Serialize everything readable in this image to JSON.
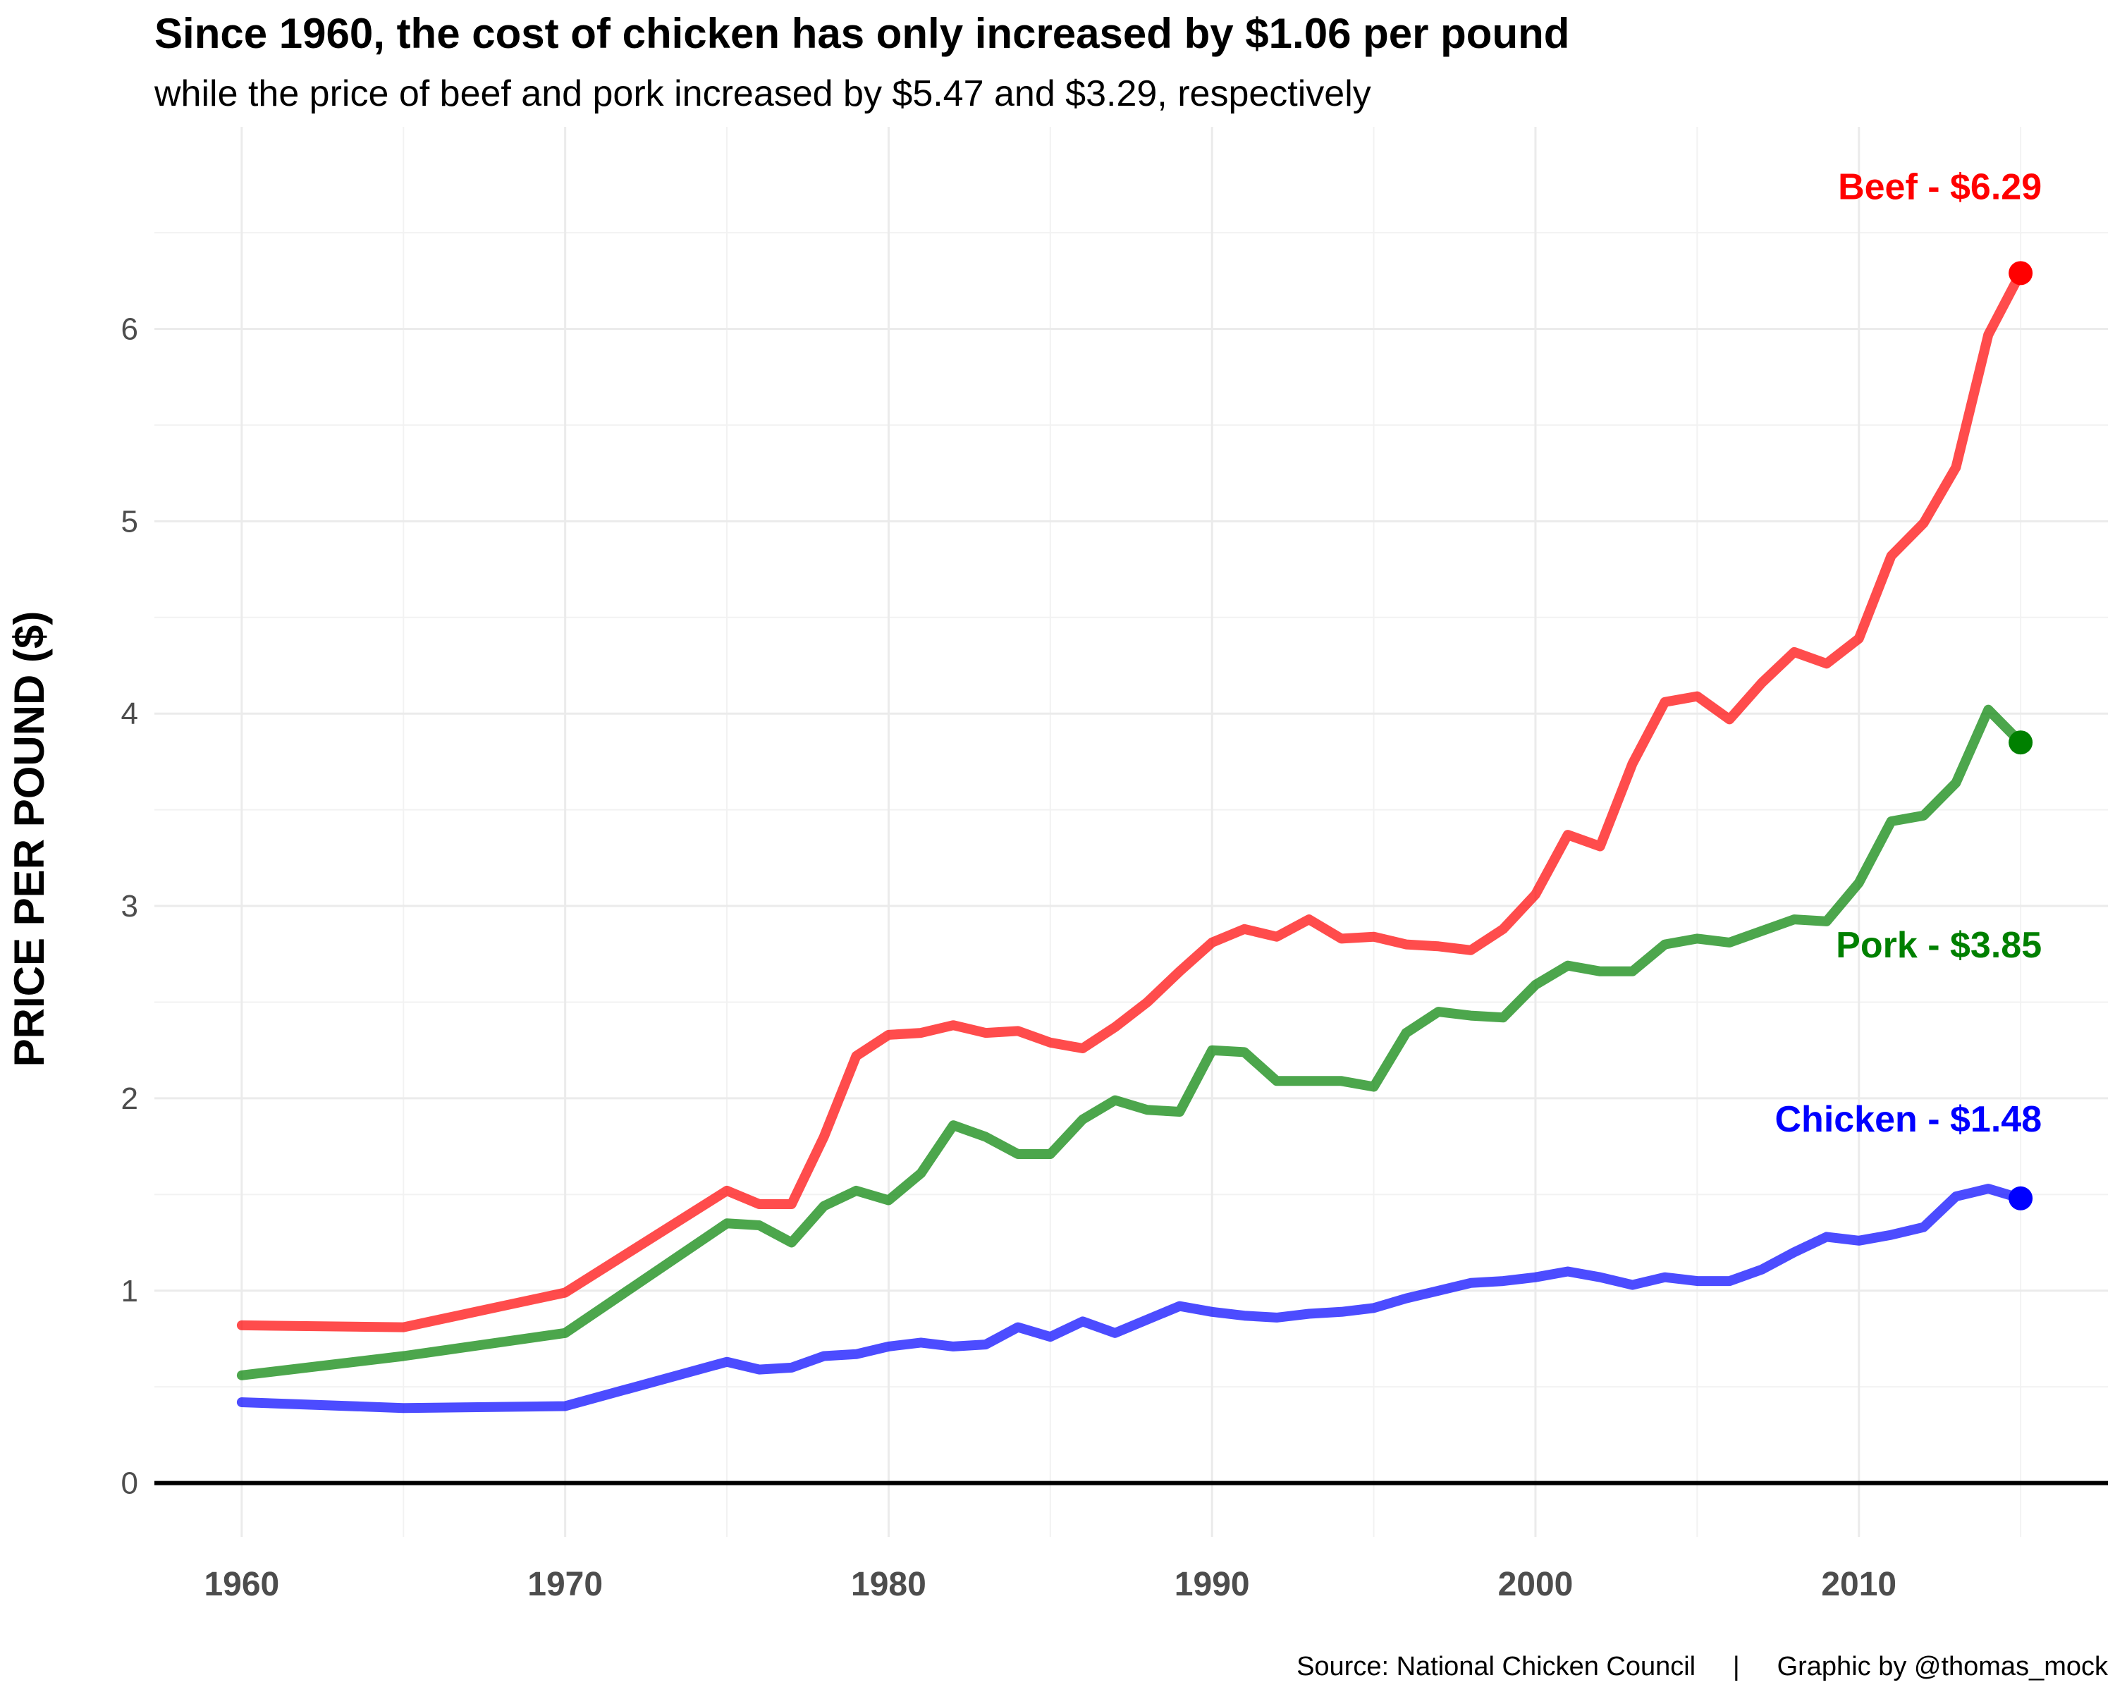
{
  "chart_data": {
    "type": "line",
    "title": "Since 1960, the cost of chicken has only increased by $1.06 per pound",
    "subtitle": "while the price of beef and pork increased by $5.47 and $3.29, respectively",
    "xlabel": "",
    "ylabel": "PRICE PER POUND ($)",
    "xlim": [
      1957.3,
      2017.7
    ],
    "ylim": [
      -0.28,
      7.05
    ],
    "x_ticks": [
      1960,
      1970,
      1980,
      1990,
      2000,
      2010
    ],
    "y_ticks": [
      0,
      1,
      2,
      3,
      4,
      5,
      6
    ],
    "grid": true,
    "caption": "Source: National Chicken Council     |     Graphic by @thomas_mock",
    "series": [
      {
        "name": "Beef",
        "color": "#ff0000",
        "end_label": "Beef - $6.29",
        "x": [
          1960,
          1965,
          1970,
          1975,
          1976,
          1977,
          1978,
          1979,
          1980,
          1981,
          1982,
          1983,
          1984,
          1985,
          1986,
          1987,
          1988,
          1989,
          1990,
          1991,
          1992,
          1993,
          1994,
          1995,
          1996,
          1997,
          1998,
          1999,
          2000,
          2001,
          2002,
          2003,
          2004,
          2005,
          2006,
          2007,
          2008,
          2009,
          2010,
          2011,
          2012,
          2013,
          2014,
          2015
        ],
        "y": [
          0.82,
          0.81,
          0.99,
          1.52,
          1.45,
          1.45,
          1.8,
          2.22,
          2.33,
          2.34,
          2.38,
          2.34,
          2.35,
          2.29,
          2.26,
          2.37,
          2.5,
          2.66,
          2.81,
          2.88,
          2.84,
          2.93,
          2.83,
          2.84,
          2.8,
          2.79,
          2.77,
          2.88,
          3.06,
          3.37,
          3.31,
          3.74,
          4.06,
          4.09,
          3.97,
          4.16,
          4.32,
          4.26,
          4.39,
          4.82,
          4.99,
          5.28,
          5.97,
          6.29
        ]
      },
      {
        "name": "Pork",
        "color": "#008000",
        "end_label": "Pork - $3.85",
        "x": [
          1960,
          1965,
          1970,
          1975,
          1976,
          1977,
          1978,
          1979,
          1980,
          1981,
          1982,
          1983,
          1984,
          1985,
          1986,
          1987,
          1988,
          1989,
          1990,
          1991,
          1992,
          1993,
          1994,
          1995,
          1996,
          1997,
          1998,
          1999,
          2000,
          2001,
          2002,
          2003,
          2004,
          2005,
          2006,
          2007,
          2008,
          2009,
          2010,
          2011,
          2012,
          2013,
          2014,
          2015
        ],
        "y": [
          0.56,
          0.66,
          0.78,
          1.35,
          1.34,
          1.25,
          1.44,
          1.52,
          1.47,
          1.61,
          1.86,
          1.8,
          1.71,
          1.71,
          1.89,
          1.99,
          1.94,
          1.93,
          2.25,
          2.24,
          2.09,
          2.09,
          2.09,
          2.06,
          2.34,
          2.45,
          2.43,
          2.42,
          2.59,
          2.69,
          2.66,
          2.66,
          2.8,
          2.83,
          2.81,
          2.87,
          2.93,
          2.92,
          3.12,
          3.44,
          3.47,
          3.64,
          4.02,
          3.85
        ]
      },
      {
        "name": "Chicken",
        "color": "#0000ff",
        "end_label": "Chicken - $1.48",
        "x": [
          1960,
          1965,
          1970,
          1975,
          1976,
          1977,
          1978,
          1979,
          1980,
          1981,
          1982,
          1983,
          1984,
          1985,
          1986,
          1987,
          1988,
          1989,
          1990,
          1991,
          1992,
          1993,
          1994,
          1995,
          1996,
          1997,
          1998,
          1999,
          2000,
          2001,
          2002,
          2003,
          2004,
          2005,
          2006,
          2007,
          2008,
          2009,
          2010,
          2011,
          2012,
          2013,
          2014,
          2015
        ],
        "y": [
          0.42,
          0.39,
          0.4,
          0.63,
          0.59,
          0.6,
          0.66,
          0.67,
          0.71,
          0.73,
          0.71,
          0.72,
          0.81,
          0.76,
          0.84,
          0.78,
          0.85,
          0.92,
          0.89,
          0.87,
          0.86,
          0.88,
          0.89,
          0.91,
          0.96,
          1.0,
          1.04,
          1.05,
          1.07,
          1.1,
          1.07,
          1.03,
          1.07,
          1.05,
          1.05,
          1.11,
          1.2,
          1.28,
          1.26,
          1.29,
          1.33,
          1.49,
          1.53,
          1.48
        ]
      }
    ]
  }
}
